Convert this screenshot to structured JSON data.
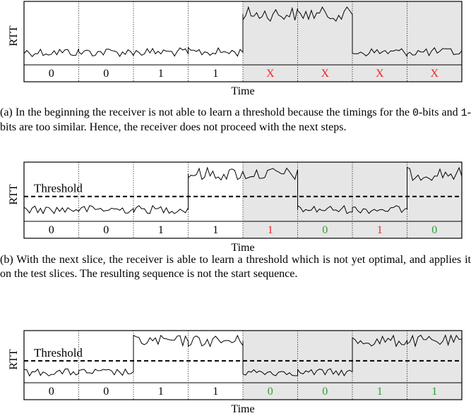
{
  "panels": [
    {
      "id": "a",
      "ylabel": "RTT",
      "xlabel": "Time",
      "show_threshold": false,
      "threshold_label": "",
      "slices": [
        {
          "label": "0",
          "level": "low",
          "label_color": "#000000"
        },
        {
          "label": "0",
          "level": "low",
          "label_color": "#000000"
        },
        {
          "label": "1",
          "level": "low",
          "label_color": "#000000"
        },
        {
          "label": "1",
          "level": "low",
          "label_color": "#000000"
        },
        {
          "label": "X",
          "level": "high",
          "label_color": "#e8262b"
        },
        {
          "label": "X",
          "level": "high",
          "label_color": "#e8262b"
        },
        {
          "label": "X",
          "level": "low",
          "label_color": "#e8262b"
        },
        {
          "label": "X",
          "level": "low",
          "label_color": "#e8262b"
        }
      ],
      "caption": {
        "part1": "(a) In the beginning the receiver is not able to learn a threshold because the timings for the ",
        "code1": "0",
        "part2": "-bits and ",
        "code2": "1",
        "part3": "-bits are too similar. Hence, the receiver does not proceed with the next steps."
      }
    },
    {
      "id": "b",
      "ylabel": "RTT",
      "xlabel": "Time",
      "show_threshold": true,
      "threshold_label": "Threshold",
      "slices": [
        {
          "label": "0",
          "level": "low",
          "label_color": "#000000"
        },
        {
          "label": "0",
          "level": "low",
          "label_color": "#000000"
        },
        {
          "label": "1",
          "level": "low",
          "label_color": "#000000"
        },
        {
          "label": "1",
          "level": "high",
          "label_color": "#000000"
        },
        {
          "label": "1",
          "level": "high",
          "label_color": "#e8262b"
        },
        {
          "label": "0",
          "level": "low",
          "label_color": "#2ca02c"
        },
        {
          "label": "1",
          "level": "low",
          "label_color": "#e8262b"
        },
        {
          "label": "0",
          "level": "high",
          "label_color": "#2ca02c"
        }
      ],
      "caption": {
        "text": "(b) With the next slice, the receiver is able to learn a threshold which is not yet optimal, and applies it on the test slices. The resulting sequence is not the start sequence."
      }
    },
    {
      "id": "c",
      "ylabel": "RTT",
      "xlabel": "Time",
      "show_threshold": true,
      "threshold_label": "Threshold",
      "slices": [
        {
          "label": "0",
          "level": "low",
          "label_color": "#000000"
        },
        {
          "label": "0",
          "level": "low",
          "label_color": "#000000"
        },
        {
          "label": "1",
          "level": "high",
          "label_color": "#000000"
        },
        {
          "label": "1",
          "level": "high",
          "label_color": "#000000"
        },
        {
          "label": "0",
          "level": "low",
          "label_color": "#2ca02c"
        },
        {
          "label": "0",
          "level": "low",
          "label_color": "#2ca02c"
        },
        {
          "label": "1",
          "level": "high",
          "label_color": "#2ca02c"
        },
        {
          "label": "1",
          "level": "high",
          "label_color": "#2ca02c"
        }
      ]
    }
  ],
  "colors": {
    "shading": "#e6e6e6",
    "line": "#000000",
    "red": "#e8262b",
    "green": "#2ca02c"
  }
}
